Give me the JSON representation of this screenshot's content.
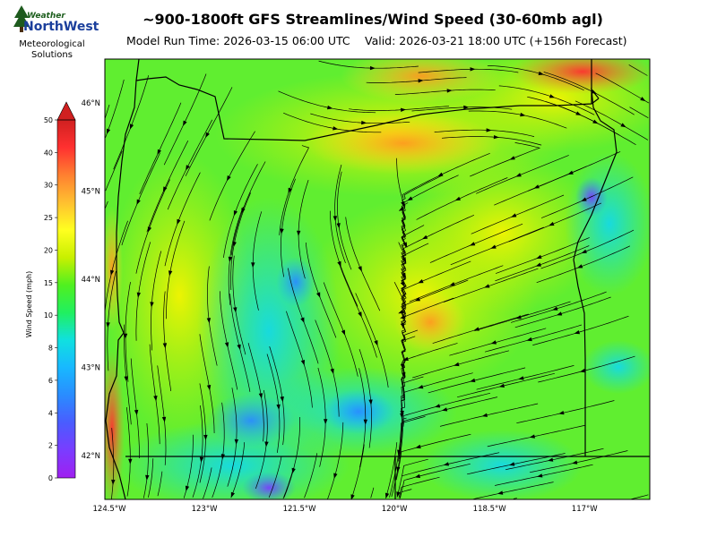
{
  "logo": {
    "brand_top": "Weather",
    "brand_bottom": "NorthWest",
    "sub_line1": "Meteorological",
    "sub_line2": "Solutions"
  },
  "title": "~900-1800ft GFS Streamlines/Wind Speed (30-60mb agl)",
  "model_run": "Model Run Time: 2026-03-15 06:00 UTC",
  "valid": "Valid: 2026-03-21 18:00 UTC  (+156h Forecast)",
  "colorbar": {
    "label": "Wind Speed (mph)",
    "ticks": [
      "0",
      "2",
      "4",
      "6",
      "8",
      "10",
      "15",
      "20",
      "25",
      "30",
      "40",
      "50"
    ],
    "tick_values": [
      0,
      2,
      4,
      6,
      8,
      10,
      15,
      20,
      25,
      30,
      40,
      50
    ],
    "colors": [
      "#a020f0",
      "#7a3cff",
      "#4a5cff",
      "#2a8cff",
      "#18b8ff",
      "#10e0e0",
      "#20f060",
      "#50f020",
      "#c8f000",
      "#ffff20",
      "#ffc030",
      "#ff8030",
      "#ff3030",
      "#d02020"
    ]
  },
  "map": {
    "lat_labels": [
      "46°N",
      "45°N",
      "44°N",
      "43°N",
      "42°N"
    ],
    "lat_values": [
      46,
      45,
      44,
      43,
      42
    ],
    "lon_labels": [
      "124.5°W",
      "123°W",
      "121.5°W",
      "120°W",
      "118.5°W",
      "117°W"
    ],
    "lon_values": [
      -124.5,
      -123,
      -121.5,
      -120,
      -118.5,
      -117
    ],
    "lon_range": [
      -124.5,
      -115.9
    ],
    "lat_range": [
      41.5,
      46.5
    ]
  }
}
